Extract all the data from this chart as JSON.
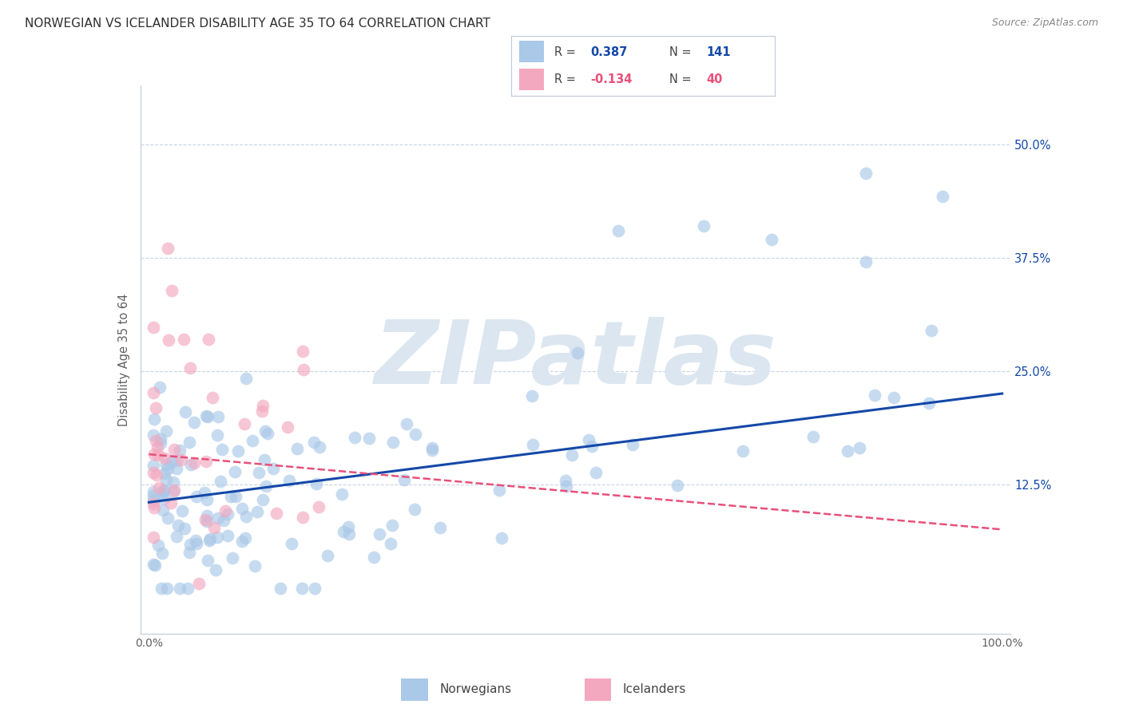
{
  "title": "NORWEGIAN VS ICELANDER DISABILITY AGE 35 TO 64 CORRELATION CHART",
  "source": "Source: ZipAtlas.com",
  "ylabel": "Disability Age 35 to 64",
  "ytick_labels": [
    "12.5%",
    "25.0%",
    "37.5%",
    "50.0%"
  ],
  "ytick_values": [
    0.125,
    0.25,
    0.375,
    0.5
  ],
  "xlim": [
    -0.01,
    1.01
  ],
  "ylim": [
    -0.04,
    0.565
  ],
  "legend_norwegian": "Norwegians",
  "legend_icelander": "Icelanders",
  "r_norwegian": 0.387,
  "n_norwegian": 141,
  "r_icelander": -0.134,
  "n_icelander": 40,
  "norwegian_color": "#aac8e8",
  "icelander_color": "#f4a8bf",
  "norwegian_line_color": "#1448a8",
  "icelander_line_color": "#e8507a",
  "watermark": "ZIPatlas",
  "watermark_color": "#dce6f0",
  "background_color": "#ffffff",
  "grid_color": "#c8d4e0",
  "title_color": "#303030",
  "norwegian_line_y0": 0.105,
  "norwegian_line_y1": 0.225,
  "icelander_line_y0": 0.158,
  "icelander_line_y1": 0.075
}
